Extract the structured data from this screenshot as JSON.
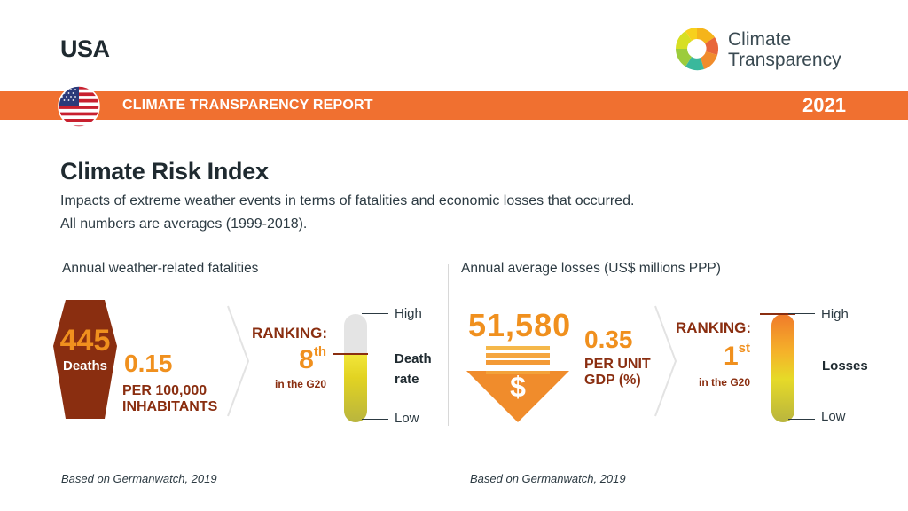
{
  "header": {
    "country": "USA",
    "logo_line1": "Climate",
    "logo_line2": "Transparency",
    "band_title": "CLIMATE TRANSPARENCY REPORT",
    "year": "2021"
  },
  "section": {
    "title": "Climate Risk Index",
    "desc1": "Impacts of extreme weather events in terms of fatalities and economic losses that occurred.",
    "desc2": "All numbers are averages (1999-2018)."
  },
  "fatalities": {
    "heading": "Annual weather-related fatalities",
    "deaths_value": "445",
    "deaths_label": "Deaths",
    "per_capita_value": "0.15",
    "per_capita_unit_line1": "PER 100,000",
    "per_capita_unit_line2": "INHABITANTS",
    "ranking_label": "RANKING:",
    "rank_number": "8",
    "rank_suffix": "th",
    "rank_scope": "in the G20",
    "scale_high": "High",
    "scale_low": "Low",
    "scale_label_line1": "Death",
    "scale_label_line2": "rate",
    "scale_level": 0.63,
    "source": "Based on Germanwatch, 2019"
  },
  "losses": {
    "heading": "Annual average losses (US$ millions PPP)",
    "losses_value": "51,580",
    "currency_symbol": "$",
    "per_gdp_value": "0.35",
    "per_gdp_unit_line1": "PER UNIT",
    "per_gdp_unit_line2": "GDP (%)",
    "ranking_label": "RANKING:",
    "rank_number": "1",
    "rank_suffix": "st",
    "rank_scope": "in the G20",
    "scale_high": "High",
    "scale_low": "Low",
    "scale_label": "Losses",
    "scale_level": 1.0,
    "source": "Based on Germanwatch, 2019"
  },
  "colors": {
    "brand_orange": "#f07030",
    "accent_orange": "#f0901e",
    "dark_red": "#8a2e10",
    "text_dark": "#1f2a30"
  }
}
